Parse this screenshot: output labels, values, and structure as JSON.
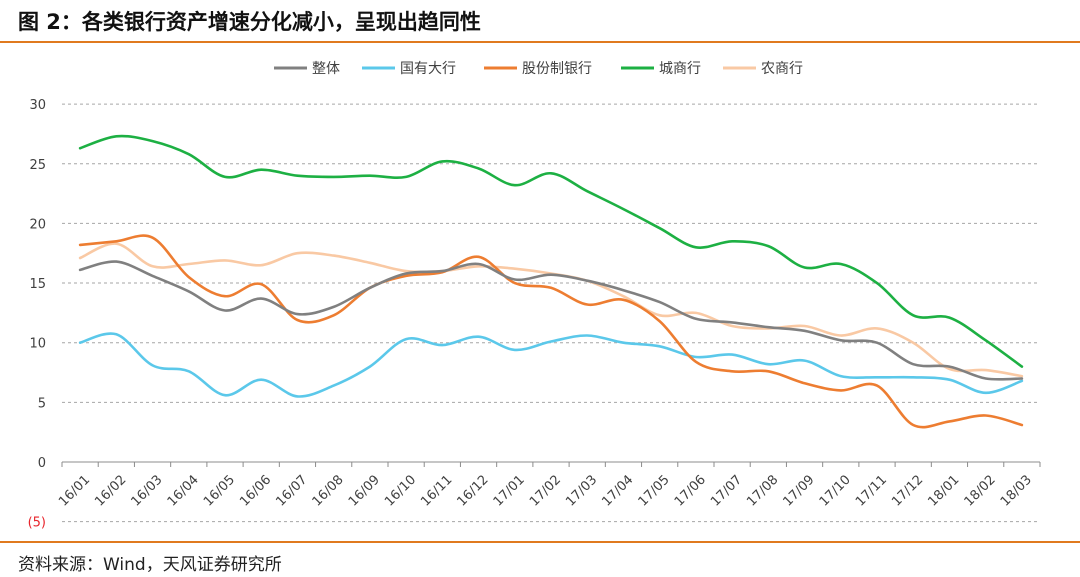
{
  "title": "图 2：各类银行资产增速分化减小，呈现出趋同性",
  "source": "资料来源：Wind，天风证券研究所",
  "chart_data": {
    "type": "line",
    "categories": [
      "16/01",
      "16/02",
      "16/03",
      "16/04",
      "16/05",
      "16/06",
      "16/07",
      "16/08",
      "16/09",
      "16/10",
      "16/11",
      "16/12",
      "17/01",
      "17/02",
      "17/03",
      "17/04",
      "17/05",
      "17/06",
      "17/07",
      "17/08",
      "17/09",
      "17/10",
      "17/11",
      "17/12",
      "18/01",
      "18/02",
      "18/03"
    ],
    "y_ticks": [
      "30",
      "25",
      "20",
      "15",
      "10",
      "5",
      "0",
      "(5)"
    ],
    "y_tick_values": [
      30,
      25,
      20,
      15,
      10,
      5,
      0,
      -5
    ],
    "ylim": [
      -5,
      30
    ],
    "grid": true,
    "legend_position": "top-center",
    "series": [
      {
        "name": "整体",
        "color": "#808080",
        "values": [
          16.1,
          16.8,
          15.6,
          14.3,
          12.7,
          13.7,
          12.4,
          13.0,
          14.6,
          15.8,
          16.0,
          16.6,
          15.3,
          15.7,
          15.2,
          14.4,
          13.4,
          12.0,
          11.7,
          11.3,
          11.0,
          10.2,
          10.0,
          8.2,
          8.0,
          7.0,
          7.0
        ]
      },
      {
        "name": "国有大行",
        "color": "#5BC8EA",
        "values": [
          10.0,
          10.7,
          8.1,
          7.6,
          5.6,
          6.9,
          5.5,
          6.4,
          8.0,
          10.3,
          9.8,
          10.5,
          9.4,
          10.1,
          10.6,
          10.0,
          9.7,
          8.8,
          9.0,
          8.2,
          8.5,
          7.2,
          7.1,
          7.1,
          6.9,
          5.8,
          6.8
        ]
      },
      {
        "name": "股份制银行",
        "color": "#ED7D31",
        "values": [
          18.2,
          18.5,
          18.8,
          15.5,
          13.9,
          14.9,
          11.9,
          12.3,
          14.6,
          15.6,
          15.9,
          17.2,
          15.0,
          14.6,
          13.2,
          13.6,
          11.8,
          8.4,
          7.6,
          7.6,
          6.6,
          6.0,
          6.4,
          3.1,
          3.4,
          3.9,
          3.1
        ]
      },
      {
        "name": "城商行",
        "color": "#1DB043",
        "values": [
          26.3,
          27.3,
          26.9,
          25.8,
          23.9,
          24.5,
          24.0,
          23.9,
          24.0,
          23.9,
          25.2,
          24.6,
          23.2,
          24.2,
          22.7,
          21.2,
          19.6,
          18.0,
          18.5,
          18.1,
          16.3,
          16.6,
          15.0,
          12.3,
          12.1,
          10.2,
          8.0
        ]
      },
      {
        "name": "农商行",
        "color": "#F9C9A4",
        "values": [
          17.1,
          18.3,
          16.4,
          16.6,
          16.9,
          16.5,
          17.5,
          17.3,
          16.7,
          16.0,
          16.0,
          16.4,
          16.2,
          15.8,
          15.2,
          13.9,
          12.3,
          12.5,
          11.4,
          11.2,
          11.4,
          10.6,
          11.2,
          10.0,
          7.8,
          7.7,
          7.2
        ]
      }
    ]
  }
}
